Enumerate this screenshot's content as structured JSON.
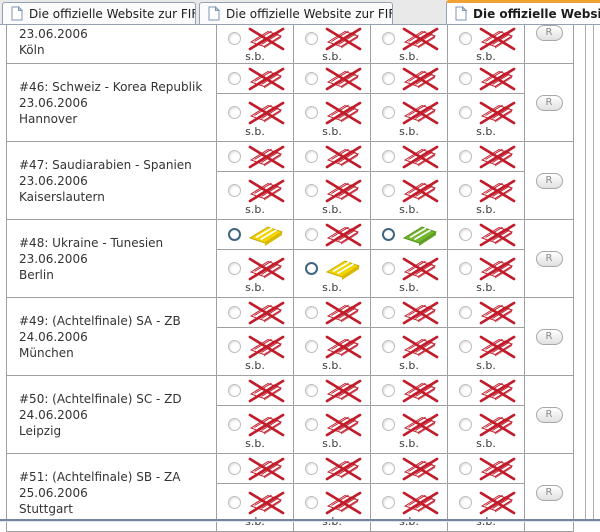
{
  "tab_bar": {
    "tabs": [
      {
        "label": "Die offizielle Website zur FIFA ...",
        "active": false
      },
      {
        "label": "Die offizielle Website zur FIFA ...",
        "active": false
      },
      {
        "label": "Die offizielle Website z",
        "active": true
      }
    ]
  },
  "ticket_table": {
    "sb_label": "s.b.",
    "reserve_button_label": "R",
    "rows": [
      {
        "partial": true,
        "title": "",
        "date": "23.06.2006",
        "city": "Köln",
        "sub_rows": [
          [
            "soldout",
            "soldout",
            "soldout",
            "soldout"
          ]
        ]
      },
      {
        "partial": false,
        "title": "#46: Schweiz - Korea Republik",
        "date": "23.06.2006",
        "city": "Hannover",
        "sub_rows": [
          [
            "soldout",
            "soldout",
            "soldout",
            "soldout"
          ],
          [
            "soldout",
            "soldout",
            "soldout",
            "soldout"
          ]
        ]
      },
      {
        "partial": false,
        "title": "#47: Saudiarabien - Spanien",
        "date": "23.06.2006",
        "city": "Kaiserslautern",
        "sub_rows": [
          [
            "soldout",
            "soldout",
            "soldout",
            "soldout"
          ],
          [
            "soldout",
            "soldout",
            "soldout",
            "soldout"
          ]
        ]
      },
      {
        "partial": false,
        "title": "#48: Ukraine - Tunesien",
        "date": "23.06.2006",
        "city": "Berlin",
        "sub_rows": [
          [
            "yellow",
            "soldout",
            "green",
            "soldout"
          ],
          [
            "soldout",
            "yellow",
            "soldout",
            "soldout"
          ]
        ]
      },
      {
        "partial": false,
        "title": "#49: (Achtelfinale) SA - ZB",
        "date": "24.06.2006",
        "city": "München",
        "sub_rows": [
          [
            "soldout",
            "soldout",
            "soldout",
            "soldout"
          ],
          [
            "soldout",
            "soldout",
            "soldout",
            "soldout"
          ]
        ]
      },
      {
        "partial": false,
        "title": "#50: (Achtelfinale) SC - ZD",
        "date": "24.06.2006",
        "city": "Leipzig",
        "sub_rows": [
          [
            "soldout",
            "soldout",
            "soldout",
            "soldout"
          ],
          [
            "soldout",
            "soldout",
            "soldout",
            "soldout"
          ]
        ]
      },
      {
        "partial": false,
        "title": "#51: (Achtelfinale) SB - ZA",
        "date": "25.06.2006",
        "city": "Stuttgart",
        "sub_rows": [
          [
            "soldout",
            "soldout",
            "soldout",
            "soldout"
          ],
          [
            "soldout",
            "soldout",
            "soldout",
            "soldout"
          ]
        ]
      }
    ]
  },
  "colors": {
    "ticket_soldout_red": "#c21b2a",
    "ticket_yellow": "#f2d400",
    "ticket_green": "#74b62e",
    "active_tab_accent": "#f0a131",
    "bottom_divider_blue": "#7585a2"
  }
}
